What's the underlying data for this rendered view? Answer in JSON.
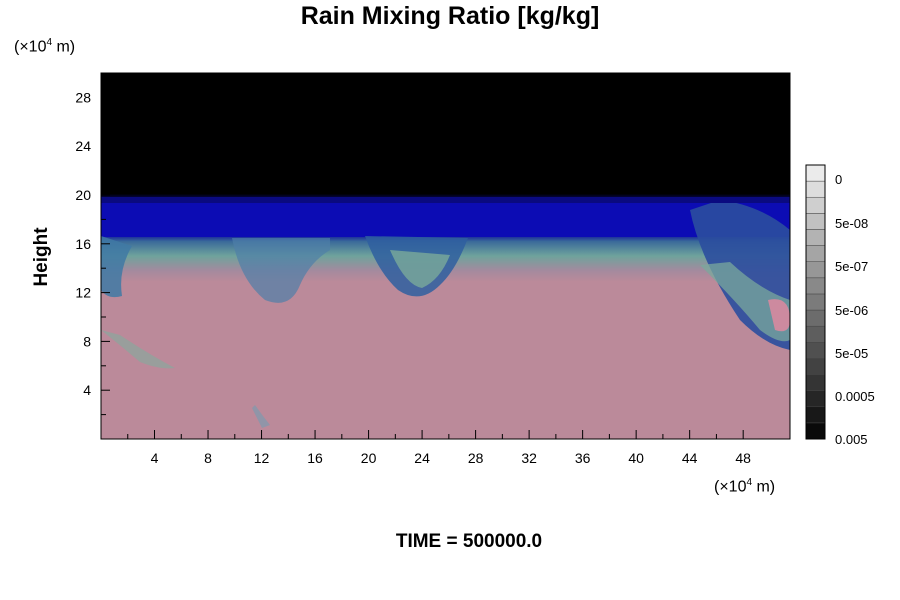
{
  "chart_data": {
    "type": "heatmap",
    "title": "Rain Mixing Ratio [kg/kg]",
    "ylabel": "Height",
    "xlabel": "",
    "axis_unit": {
      "prefix": "(×10",
      "exponent": "4",
      "suffix": " m)"
    },
    "xlim": [
      0,
      51.5
    ],
    "ylim": [
      0,
      30
    ],
    "x_ticks": [
      "4",
      "8",
      "12",
      "16",
      "20",
      "24",
      "28",
      "32",
      "36",
      "40",
      "44",
      "48"
    ],
    "y_ticks": [
      "4",
      "8",
      "12",
      "16",
      "20",
      "24",
      "28"
    ],
    "colorbar": {
      "labels": [
        "0.005",
        "0.0005",
        "5e-05",
        "5e-06",
        "5e-07",
        "5e-08",
        "0"
      ],
      "label_values": [
        0.005,
        0.0005,
        5e-05,
        5e-06,
        5e-07,
        5e-08,
        0
      ]
    },
    "annotation": "TIME = 500000.0"
  }
}
